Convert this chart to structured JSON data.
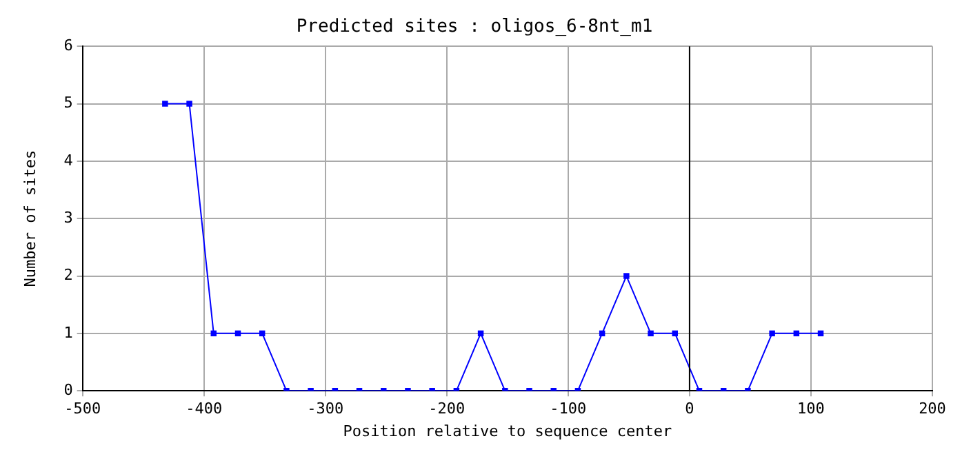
{
  "chart_data": {
    "type": "line",
    "title": "Predicted sites : oligos_6-8nt_m1",
    "xlabel": "Position relative to sequence center",
    "ylabel": "Number of sites",
    "x": [
      -432,
      -412,
      -392,
      -372,
      -352,
      -332,
      -312,
      -292,
      -272,
      -252,
      -232,
      -212,
      -192,
      -172,
      -152,
      -132,
      -112,
      -92,
      -72,
      -52,
      -32,
      -12,
      8,
      28,
      48,
      68,
      88,
      108
    ],
    "series": [
      {
        "color": "#0000ff",
        "values": [
          5,
          5,
          1,
          1,
          1,
          0,
          0,
          0,
          0,
          0,
          0,
          0,
          0,
          1,
          0,
          0,
          0,
          0,
          1,
          2,
          1,
          1,
          0,
          0,
          0,
          1,
          1,
          1
        ]
      }
    ],
    "xlim": [
      -500,
      200
    ],
    "xticks": [
      -500,
      -400,
      -300,
      -200,
      -100,
      0,
      100,
      200
    ],
    "ylim": [
      0,
      6
    ],
    "yticks": [
      0,
      1,
      2,
      3,
      4,
      5,
      6
    ],
    "ref_lines": [
      {
        "axis": "x",
        "value": 0,
        "color": "#000000"
      }
    ],
    "grid": true,
    "legend": false,
    "marker": "square",
    "line_style": "solid"
  }
}
